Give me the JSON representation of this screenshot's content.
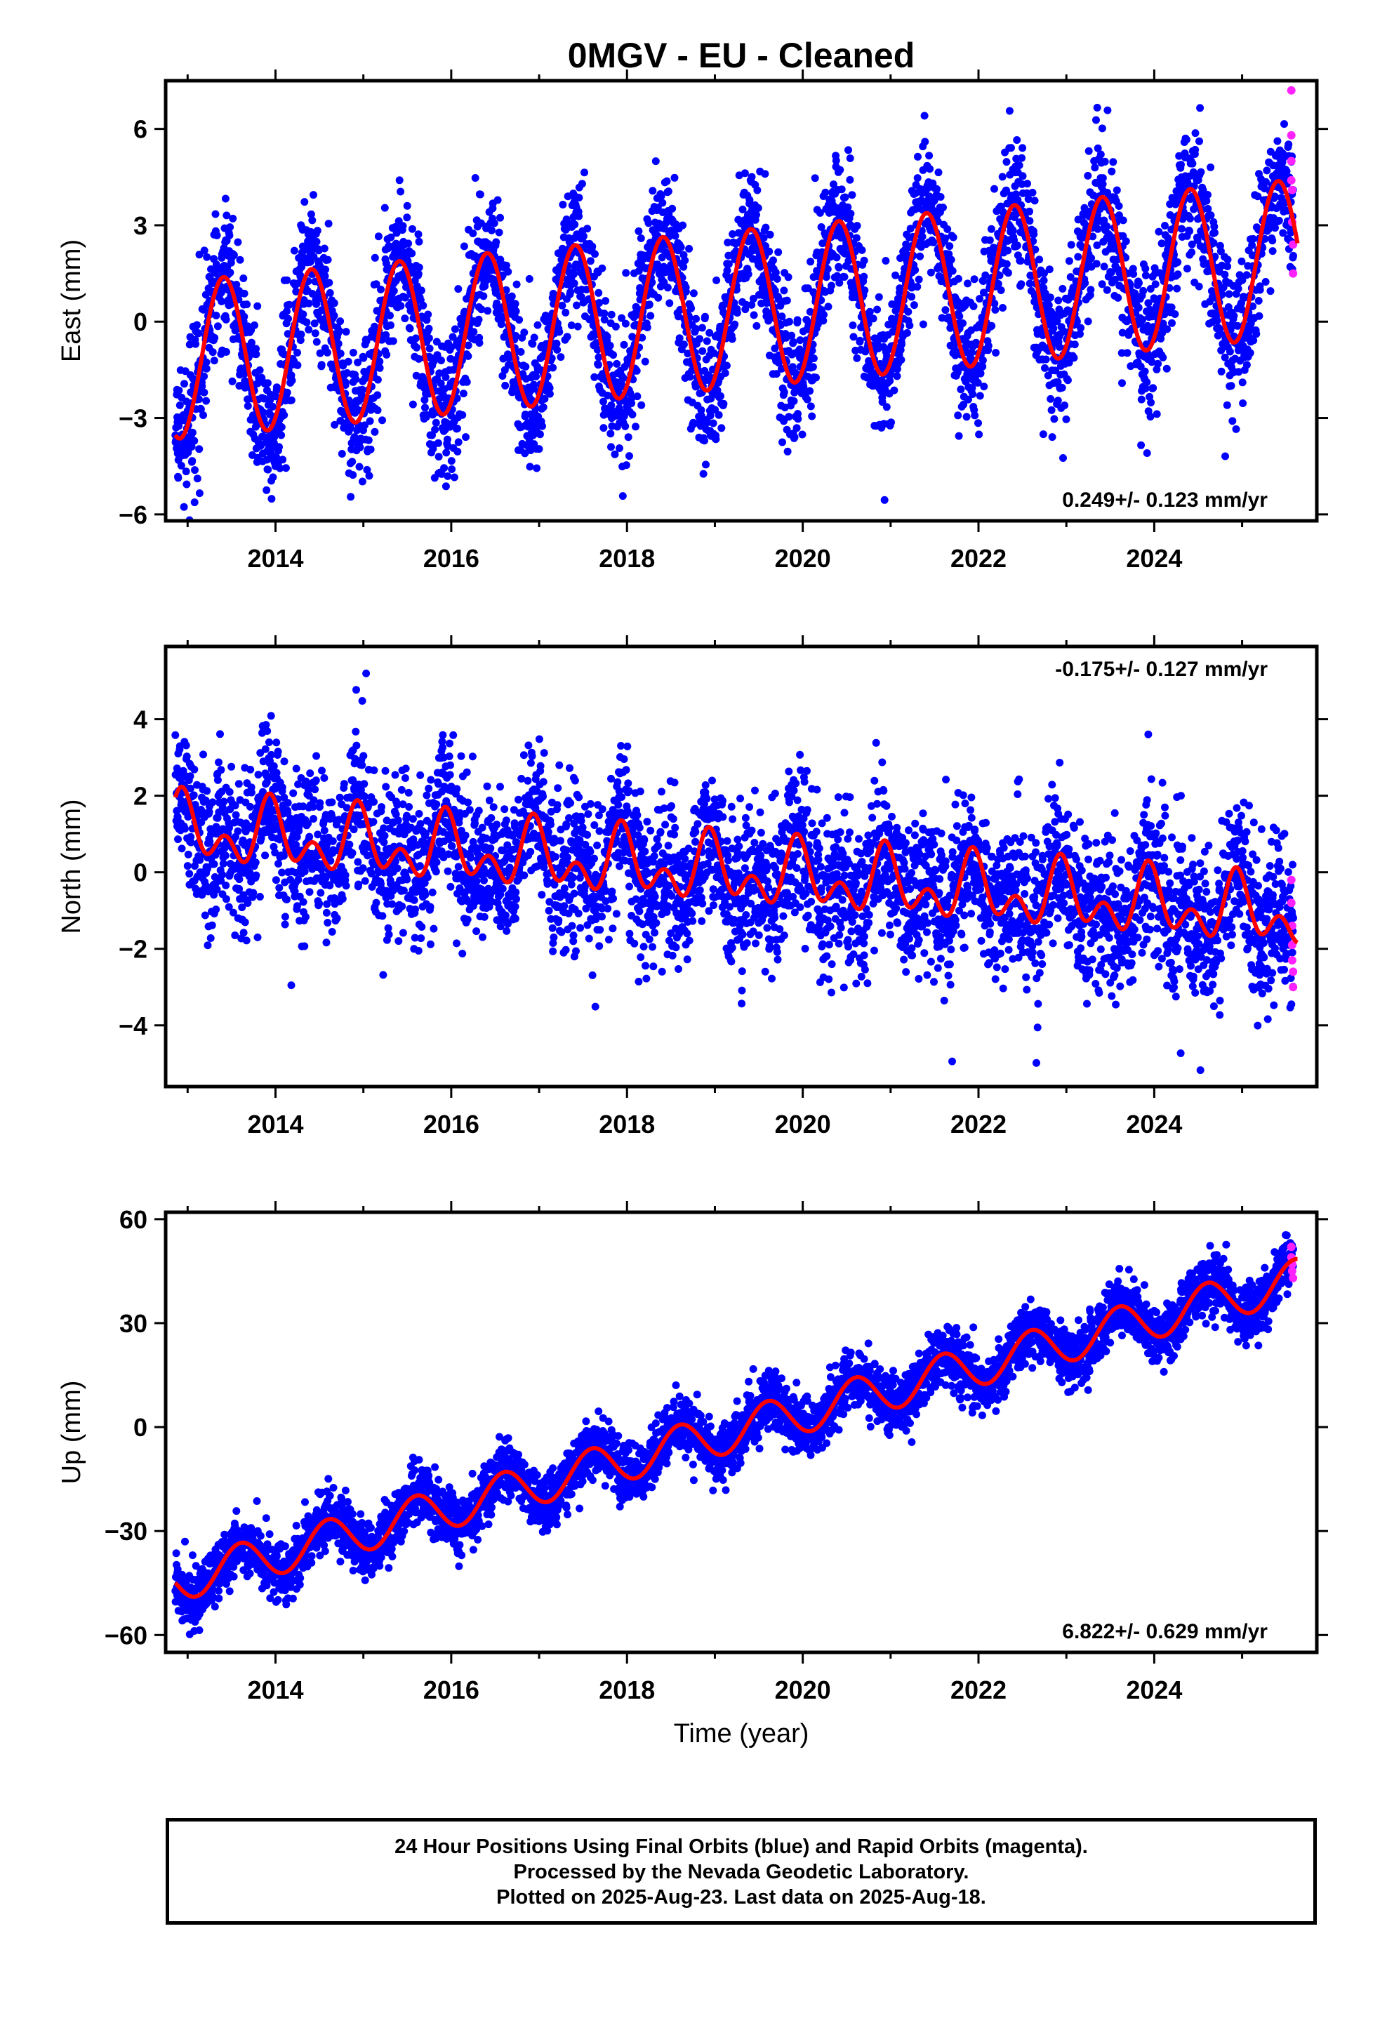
{
  "chart_data": [
    {
      "type": "scatter",
      "title": "0MGV  - EU - Cleaned",
      "xlabel": "",
      "ylabel": "East (mm)",
      "xlim": [
        2012.75,
        2025.85
      ],
      "ylim": [
        -6.2,
        7.5
      ],
      "xticks": [
        "2014",
        "2016",
        "2018",
        "2020",
        "2022",
        "2024"
      ],
      "yticks": [
        "−6",
        "−3",
        "0",
        "3",
        "6"
      ],
      "ytick_values": [
        -6,
        -3,
        0,
        3,
        6
      ],
      "rate": "0.249+/- 0.123 mm/yr",
      "rate_position": "bottom-right",
      "model": {
        "start": 2012.86,
        "end": 2025.63,
        "offset": -1.2,
        "trend": 0.249,
        "annual_amplitude": 2.45,
        "annual_peak": 0.41,
        "semiannual_amplitude": 0.0,
        "semiannual_peak": 0.0
      },
      "scatter_noise": 1.1,
      "rapid_points": [
        [
          2025.56,
          7.2
        ],
        [
          2025.56,
          5.8
        ],
        [
          2025.56,
          5.0
        ],
        [
          2025.56,
          4.4
        ],
        [
          2025.57,
          4.1
        ],
        [
          2025.57,
          3.1
        ],
        [
          2025.58,
          2.4
        ],
        [
          2025.58,
          1.5
        ]
      ],
      "series": [
        {
          "name": "Final Orbits",
          "color": "#0000ff"
        },
        {
          "name": "Rapid Orbits",
          "color": "#ff22ff"
        },
        {
          "name": "Model",
          "color": "#ff0000"
        }
      ]
    },
    {
      "type": "scatter",
      "title": "",
      "xlabel": "",
      "ylabel": "North (mm)",
      "xlim": [
        2012.75,
        2025.85
      ],
      "ylim": [
        -5.6,
        5.9
      ],
      "xticks": [
        "2014",
        "2016",
        "2018",
        "2020",
        "2022",
        "2024"
      ],
      "yticks": [
        "−4",
        "−2",
        "0",
        "2",
        "4"
      ],
      "ytick_values": [
        -4,
        -2,
        0,
        2,
        4
      ],
      "rate": "-0.175+/- 0.127 mm/yr",
      "rate_position": "top-right",
      "model": {
        "start": 2012.86,
        "end": 2025.63,
        "offset": 1.1,
        "trend": -0.175,
        "annual_amplitude": 0.6,
        "annual_peak": 0.95,
        "semiannual_amplitude": 0.55,
        "semiannual_peak": 0.43
      },
      "scatter_noise": 1.0,
      "rapid_points": [
        [
          2025.56,
          -0.2
        ],
        [
          2025.56,
          -0.8
        ],
        [
          2025.57,
          -1.4
        ],
        [
          2025.57,
          -1.9
        ],
        [
          2025.57,
          -2.3
        ],
        [
          2025.58,
          -2.6
        ],
        [
          2025.58,
          -3.0
        ]
      ],
      "series": [
        {
          "name": "Final Orbits",
          "color": "#0000ff"
        },
        {
          "name": "Rapid Orbits",
          "color": "#ff22ff"
        },
        {
          "name": "Model",
          "color": "#ff0000"
        }
      ]
    },
    {
      "type": "scatter",
      "title": "",
      "xlabel": "Time (year)",
      "ylabel": "Up (mm)",
      "xlim": [
        2012.75,
        2025.85
      ],
      "ylim": [
        -65,
        62
      ],
      "xticks": [
        "2014",
        "2016",
        "2018",
        "2020",
        "2022",
        "2024"
      ],
      "yticks": [
        "−60",
        "−30",
        "0",
        "30",
        "60"
      ],
      "ytick_values": [
        -60,
        -30,
        0,
        30,
        60
      ],
      "rate": "6.822+/- 0.629 mm/yr",
      "rate_position": "bottom-right",
      "model": {
        "start": 2012.86,
        "end": 2025.63,
        "offset": -44.5,
        "trend": 6.822,
        "annual_amplitude": 6.0,
        "annual_peak": 0.6,
        "semiannual_amplitude": 0.0,
        "semiannual_peak": 0.0
      },
      "scatter_noise": 4.2,
      "rapid_points": [
        [
          2025.56,
          52
        ],
        [
          2025.56,
          49
        ],
        [
          2025.57,
          47
        ],
        [
          2025.57,
          45
        ],
        [
          2025.58,
          43
        ]
      ],
      "series": [
        {
          "name": "Final Orbits",
          "color": "#0000ff"
        },
        {
          "name": "Rapid Orbits",
          "color": "#ff22ff"
        },
        {
          "name": "Model",
          "color": "#ff0000"
        }
      ]
    }
  ],
  "footer": {
    "line1": "24 Hour Positions Using Final Orbits (blue) and Rapid Orbits (magenta).",
    "line2": "Processed by the Nevada Geodetic Laboratory.",
    "line3": "Plotted on 2025-Aug-23. Last data on 2025-Aug-18."
  }
}
